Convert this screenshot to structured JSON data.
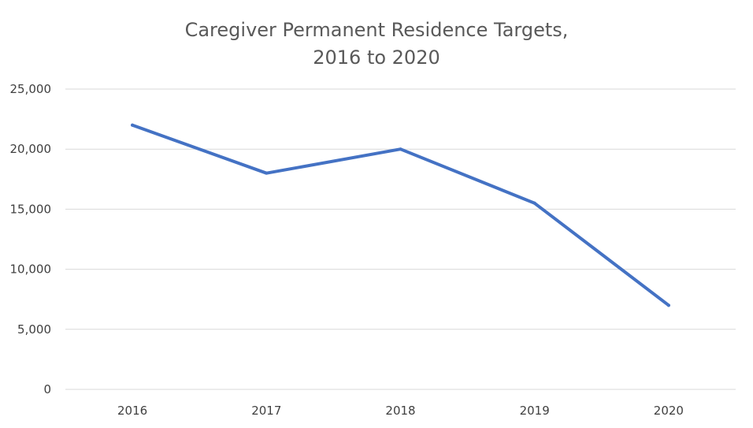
{
  "chart_data": {
    "type": "line",
    "title": [
      "Caregiver Permanent Residence Targets,",
      "2016 to 2020"
    ],
    "xlabel": "",
    "ylabel": "",
    "categories": [
      "2016",
      "2017",
      "2018",
      "2019",
      "2020"
    ],
    "series": [
      {
        "values": [
          22000,
          18000,
          20000,
          15500,
          7000
        ]
      }
    ],
    "ylim": [
      0,
      25000
    ],
    "yticks": [
      0,
      5000,
      10000,
      15000,
      20000,
      25000
    ],
    "ytick_labels": [
      "0",
      "5,000",
      "10,000",
      "15,000",
      "20,000",
      "25,000"
    ],
    "grid": true,
    "legend": "none",
    "colors": {
      "series": "#4472c4",
      "grid": "#d9d9d9",
      "title": "#595959",
      "tick": "#404040"
    }
  }
}
